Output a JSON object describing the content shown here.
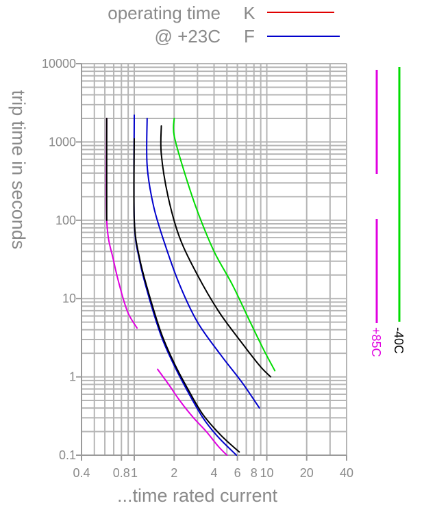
{
  "chart_data": {
    "type": "line",
    "xlabel": "...time rated current",
    "ylabel": "trip time in seconds",
    "x_scale": "log",
    "y_scale": "log",
    "xlim": [
      0.4,
      40
    ],
    "ylim": [
      0.1,
      10000
    ],
    "grid": true,
    "x_ticks": [
      {
        "value": 0.4,
        "label": "0.4"
      },
      {
        "value": 0.8,
        "label": "0.8"
      },
      {
        "value": 1,
        "label": "1"
      },
      {
        "value": 2,
        "label": "2"
      },
      {
        "value": 4,
        "label": "4"
      },
      {
        "value": 6,
        "label": "6"
      },
      {
        "value": 8,
        "label": "8"
      },
      {
        "value": 10,
        "label": "10"
      },
      {
        "value": 20,
        "label": "20"
      },
      {
        "value": 40,
        "label": "40"
      }
    ],
    "y_ticks": [
      {
        "value": 0.1,
        "label": "0.1"
      },
      {
        "value": 1,
        "label": "1"
      },
      {
        "value": 10,
        "label": "10"
      },
      {
        "value": 100,
        "label": "100"
      },
      {
        "value": 1000,
        "label": "1000"
      },
      {
        "value": 10000,
        "label": "10000"
      }
    ],
    "legend": {
      "placement": "top",
      "caption_lines": [
        "operating time",
        "@ +23C"
      ],
      "entries": [
        {
          "label": "K",
          "color": "#e00000"
        },
        {
          "label": "F",
          "color": "#0000cc"
        }
      ]
    },
    "series": [
      {
        "color": "#e000e0",
        "points": [
          [
            0.62,
            2000
          ],
          [
            0.62,
            100
          ],
          [
            0.7,
            30
          ],
          [
            0.8,
            12
          ],
          [
            0.9,
            6.5
          ],
          [
            1.05,
            4.2
          ]
        ]
      },
      {
        "color": "#e000e0",
        "points": [
          [
            1.5,
            1.25
          ],
          [
            1.8,
            0.82
          ],
          [
            2.2,
            0.5
          ],
          [
            2.8,
            0.3
          ],
          [
            3.5,
            0.2
          ],
          [
            4.3,
            0.13
          ],
          [
            5.0,
            0.1
          ]
        ]
      },
      {
        "color": "#000000",
        "points": [
          [
            0.62,
            2000
          ],
          [
            0.62,
            100
          ]
        ]
      },
      {
        "color": "#0000cc",
        "points": [
          [
            1.0,
            2200
          ],
          [
            1.0,
            100
          ],
          [
            1.1,
            30
          ],
          [
            1.3,
            10
          ],
          [
            1.6,
            3.3
          ],
          [
            2.0,
            1.4
          ],
          [
            2.6,
            0.6
          ],
          [
            3.3,
            0.3
          ],
          [
            4.3,
            0.17
          ],
          [
            5.9,
            0.1
          ]
        ]
      },
      {
        "color": "#000000",
        "points": [
          [
            1.0,
            1100
          ],
          [
            1.0,
            100
          ],
          [
            1.1,
            32
          ],
          [
            1.3,
            11
          ],
          [
            1.6,
            3.6
          ],
          [
            2.0,
            1.5
          ],
          [
            2.6,
            0.65
          ],
          [
            3.3,
            0.33
          ],
          [
            4.5,
            0.18
          ],
          [
            6.2,
            0.11
          ]
        ]
      },
      {
        "color": "#0000cc",
        "points": [
          [
            1.25,
            2000
          ],
          [
            1.25,
            500
          ],
          [
            1.4,
            150
          ],
          [
            1.7,
            50
          ],
          [
            2.2,
            15
          ],
          [
            3.0,
            5
          ],
          [
            4.5,
            1.9
          ],
          [
            6.5,
            0.85
          ],
          [
            8.8,
            0.4
          ]
        ]
      },
      {
        "color": "#000000",
        "points": [
          [
            1.6,
            1600
          ],
          [
            1.6,
            700
          ],
          [
            1.8,
            200
          ],
          [
            2.2,
            60
          ],
          [
            3.0,
            20
          ],
          [
            4.3,
            7
          ],
          [
            6.2,
            3.0
          ],
          [
            8.8,
            1.4
          ],
          [
            10.7,
            1.0
          ]
        ]
      },
      {
        "color": "#00dd00",
        "points": [
          [
            2.0,
            2000
          ],
          [
            2.0,
            1200
          ],
          [
            2.4,
            400
          ],
          [
            3.0,
            130
          ],
          [
            4.0,
            40
          ],
          [
            5.5,
            15
          ],
          [
            7.5,
            5
          ],
          [
            9.5,
            2.2
          ],
          [
            11.5,
            1.2
          ]
        ]
      }
    ],
    "side_bars": [
      {
        "label": "+85C",
        "color": "#e000e0"
      },
      {
        "label": "-40C",
        "color": "#00dd00",
        "label_color": "#000000"
      }
    ]
  }
}
